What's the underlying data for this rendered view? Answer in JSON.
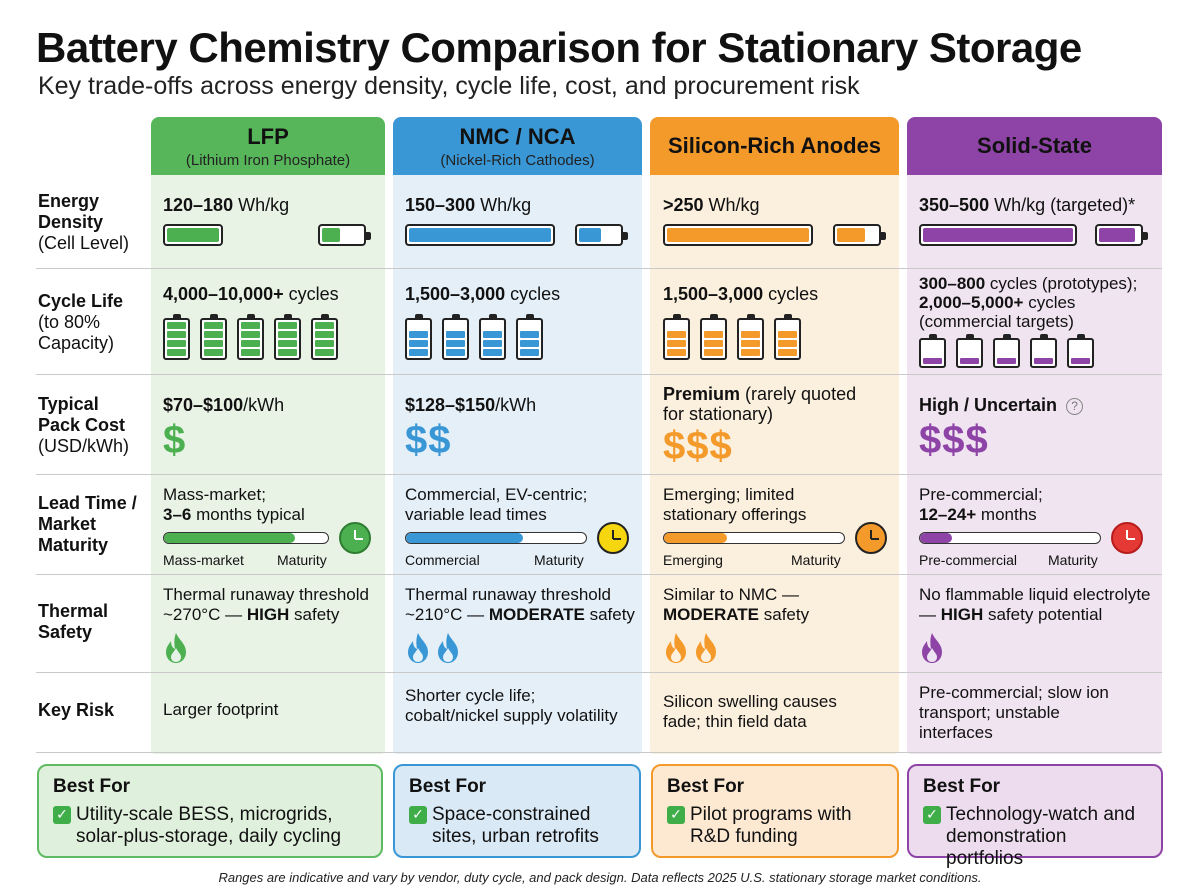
{
  "title": "Battery Chemistry Comparison for Stationary Storage",
  "subtitle": "Key trade-offs across energy density, cycle life, cost, and procurement risk",
  "colors": {
    "lfp": "#4caf50",
    "lfp_bg": "#e8f3e5",
    "nmc": "#3a97d6",
    "nmc_bg": "#e4eff8",
    "si": "#f39a2b",
    "si_bg": "#fbefde",
    "ss": "#8e44a6",
    "ss_bg": "#efe4f0"
  },
  "columns": [
    {
      "title": "LFP",
      "subtitle": "(Lithium Iron Phosphate)"
    },
    {
      "title": "NMC / NCA",
      "subtitle": "(Nickel-Rich Cathodes)"
    },
    {
      "title": "Silicon-Rich Anodes",
      "subtitle": ""
    },
    {
      "title": "Solid-State",
      "subtitle": ""
    }
  ],
  "rows": {
    "energy": {
      "label1": "Energy",
      "label2": "Density",
      "label3": "(Cell Level)"
    },
    "cycle": {
      "label1": "Cycle Life",
      "label2": "(to 80%",
      "label3": "Capacity)"
    },
    "cost": {
      "label1": "Typical",
      "label2": "Pack Cost",
      "label3": "(USD/kWh)"
    },
    "lead": {
      "label1": "Lead Time /",
      "label2": "Market",
      "label3": "Maturity"
    },
    "thermal": {
      "label1": "Thermal",
      "label2": "Safety"
    },
    "risk": {
      "label1": "Key Risk"
    }
  },
  "energy": [
    {
      "value": "120–180",
      "unit": " Wh/kg",
      "fill": 0.45
    },
    {
      "value": "150–300",
      "unit": " Wh/kg",
      "fill": 0.55
    },
    {
      "value": ">250",
      "unit": " Wh/kg",
      "fill": 0.7
    },
    {
      "value": "350–500",
      "unit": " Wh/kg (targeted)*",
      "fill": 0.9
    }
  ],
  "cycle": [
    {
      "value": "4,000–10,000+",
      "unit": " cycles",
      "line2": "",
      "line3": "",
      "cells_filled": 5,
      "level": 1.0
    },
    {
      "value": "1,500–3,000",
      "unit": " cycles",
      "line2": "",
      "line3": "",
      "cells_filled": 4,
      "level": 0.7
    },
    {
      "value": "1,500–3,000",
      "unit": " cycles",
      "line2": "",
      "line3": "",
      "cells_filled": 4,
      "level": 0.7
    },
    {
      "value": "300–800",
      "unit": " cycles (prototypes);",
      "line2a": "2,000–5,000+",
      "line2b": " cycles",
      "line3": "(commercial targets)",
      "cells_filled": 5,
      "level": 0.4
    }
  ],
  "cost": [
    {
      "value": "$70–$100",
      "unit": "/kWh",
      "extra": "",
      "symbol": "$"
    },
    {
      "value": "$128–$150",
      "unit": "/kWh",
      "extra": "",
      "symbol": "$$"
    },
    {
      "value": "Premium",
      "unit": " (rarely quoted",
      "extra": "for stationary)",
      "symbol": "$$$"
    },
    {
      "value": "High / Uncertain",
      "unit": "",
      "extra": "",
      "symbol": "$$$",
      "help": "?"
    }
  ],
  "lead": [
    {
      "line1": "Mass-market;",
      "line2b": "3–6",
      "line2": " months typical",
      "left": "Mass-market",
      "right": "Maturity",
      "maturity": 0.8,
      "clock": "#4caf50"
    },
    {
      "line1": "Commercial, EV-centric;",
      "line2b": "",
      "line2": "variable lead times",
      "left": "Commercial",
      "right": "Maturity",
      "maturity": 0.65,
      "clock": "#f5d60f"
    },
    {
      "line1": "Emerging; limited",
      "line2b": "",
      "line2": "stationary offerings",
      "left": "Emerging",
      "right": "Maturity",
      "maturity": 0.35,
      "clock": "#f39a2b"
    },
    {
      "line1": "Pre-commercial;",
      "line2b": "12–24+",
      "line2": " months",
      "left": "Pre-commercial",
      "right": "Maturity",
      "maturity": 0.18,
      "clock": "#e53935"
    }
  ],
  "thermal": [
    {
      "line1": "Thermal runaway threshold",
      "line2a": "~270°C — ",
      "line2b": "HIGH",
      "line2c": " safety",
      "flames": 1
    },
    {
      "line1": "Thermal runaway threshold",
      "line2a": "~210°C — ",
      "line2b": "MODERATE",
      "line2c": " safety",
      "flames": 2
    },
    {
      "line1": "Similar to NMC —",
      "line2a": "",
      "line2b": "MODERATE",
      "line2c": " safety",
      "flames": 2
    },
    {
      "line1": "No flammable liquid electrolyte",
      "line2a": "— ",
      "line2b": "HIGH",
      "line2c": " safety potential",
      "flames": 1
    }
  ],
  "risk": [
    {
      "line1": "Larger footprint",
      "line2": "",
      "line3": ""
    },
    {
      "line1": "Shorter cycle life;",
      "line2": "cobalt/nickel supply volatility",
      "line3": ""
    },
    {
      "line1": "Silicon swelling causes",
      "line2": "fade; thin field data",
      "line3": ""
    },
    {
      "line1": "Pre-commercial; slow ion",
      "line2": "transport; unstable",
      "line3": "interfaces"
    }
  ],
  "best_for": [
    {
      "title": "Best For",
      "check": "✓",
      "line1": "Utility-scale BESS, microgrids,",
      "line2": "solar-plus-storage, daily cycling"
    },
    {
      "title": "Best For",
      "check": "✓",
      "line1": "Space-constrained",
      "line2": "sites, urban retrofits"
    },
    {
      "title": "Best For",
      "check": "✓",
      "line1": "Pilot programs with",
      "line2": "R&D funding"
    },
    {
      "title": "Best For",
      "check": "✓",
      "line1": "Technology-watch and",
      "line2": "demonstration portfolios"
    }
  ],
  "footnote": "Ranges are indicative and vary by vendor, duty cycle, and pack design. Data reflects 2025 U.S. stationary storage market conditions."
}
